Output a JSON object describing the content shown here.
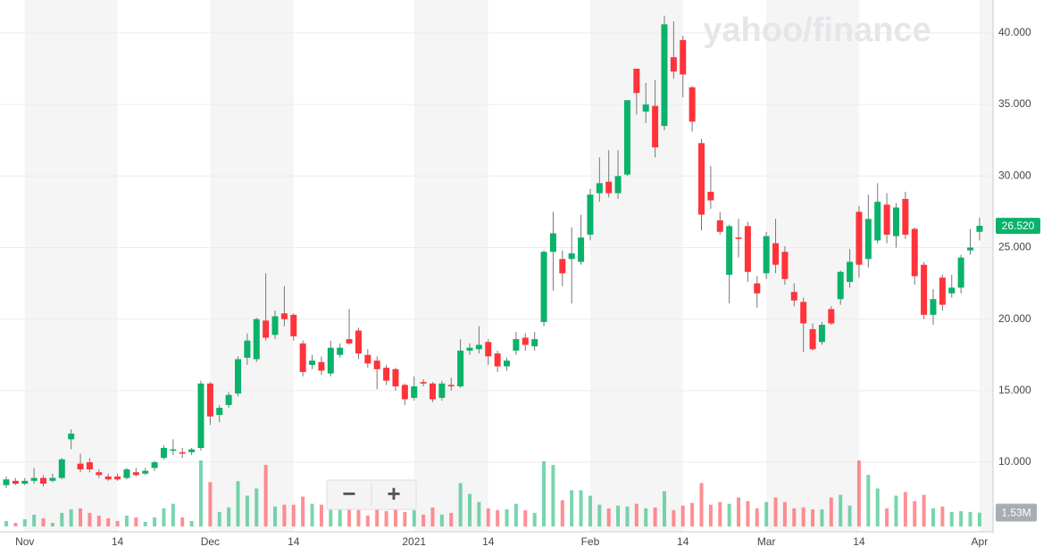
{
  "chart_data": {
    "type": "candlestick",
    "watermark": "yahoo/finance",
    "controls": [
      "−",
      "+"
    ],
    "up_color": "#0ab26a",
    "down_color": "#ff333a",
    "ylim": [
      5.2,
      42.3
    ],
    "yticks": [
      {
        "value": 10,
        "label": "10.000"
      },
      {
        "value": 15,
        "label": "15.000"
      },
      {
        "value": 20,
        "label": "20.000"
      },
      {
        "value": 25,
        "label": "25.000"
      },
      {
        "value": 30,
        "label": "30.000"
      },
      {
        "value": 35,
        "label": "35.000"
      },
      {
        "value": 40,
        "label": "40.000"
      }
    ],
    "grid": true,
    "last_price_label": "26.520",
    "last_volume_label": "1.53M",
    "volume_lim": [
      0,
      7.5
    ],
    "categories": [
      null,
      null,
      "Nov",
      null,
      null,
      null,
      null,
      null,
      null,
      null,
      null,
      null,
      "14",
      null,
      null,
      null,
      null,
      null,
      null,
      null,
      null,
      null,
      "Dec",
      null,
      null,
      null,
      null,
      null,
      null,
      null,
      null,
      "14",
      null,
      null,
      null,
      null,
      null,
      null,
      null,
      null,
      null,
      null,
      null,
      null,
      "2021",
      null,
      null,
      null,
      null,
      null,
      null,
      null,
      "14",
      null,
      null,
      null,
      null,
      null,
      null,
      null,
      null,
      null,
      null,
      "Feb",
      null,
      null,
      null,
      null,
      null,
      null,
      null,
      null,
      null,
      "14",
      null,
      null,
      null,
      null,
      null,
      null,
      null,
      null,
      "Mar",
      null,
      null,
      null,
      null,
      null,
      null,
      null,
      null,
      null,
      "14",
      null,
      null,
      null,
      null,
      null,
      null,
      null,
      null,
      null,
      null,
      null,
      null,
      "Apr"
    ],
    "candles": [
      [
        8.4,
        9.0,
        8.2,
        8.8
      ],
      [
        8.7,
        8.9,
        8.4,
        8.5
      ],
      [
        8.5,
        8.9,
        8.4,
        8.7
      ],
      [
        8.7,
        9.6,
        8.5,
        8.9
      ],
      [
        8.9,
        9.1,
        8.3,
        8.5
      ],
      [
        8.7,
        9.2,
        8.6,
        8.9
      ],
      [
        8.9,
        10.3,
        8.8,
        10.2
      ],
      [
        11.6,
        12.3,
        10.9,
        12.0
      ],
      [
        9.9,
        10.6,
        9.3,
        9.5
      ],
      [
        10.0,
        10.3,
        9.3,
        9.5
      ],
      [
        9.3,
        9.5,
        8.9,
        9.1
      ],
      [
        9.0,
        9.2,
        8.7,
        8.8
      ],
      [
        9.0,
        9.2,
        8.7,
        8.8
      ],
      [
        8.9,
        9.6,
        8.8,
        9.5
      ],
      [
        9.3,
        9.6,
        9.0,
        9.1
      ],
      [
        9.2,
        9.6,
        9.1,
        9.4
      ],
      [
        9.6,
        10.1,
        9.4,
        10.0
      ],
      [
        10.3,
        11.2,
        10.2,
        11.0
      ],
      [
        10.8,
        11.6,
        10.5,
        10.9
      ],
      [
        10.7,
        11.0,
        10.3,
        10.6
      ],
      [
        10.7,
        11.0,
        10.5,
        10.9
      ],
      [
        11.0,
        15.7,
        10.8,
        15.5
      ],
      [
        15.5,
        15.6,
        12.6,
        13.2
      ],
      [
        13.3,
        14.0,
        12.8,
        13.8
      ],
      [
        14.0,
        14.9,
        13.8,
        14.7
      ],
      [
        14.8,
        17.4,
        14.6,
        17.2
      ],
      [
        17.3,
        19.0,
        16.8,
        18.5
      ],
      [
        17.2,
        20.1,
        17.0,
        20.0
      ],
      [
        19.9,
        23.2,
        18.5,
        18.7
      ],
      [
        18.9,
        20.6,
        18.6,
        20.2
      ],
      [
        20.4,
        22.3,
        19.5,
        20.0
      ],
      [
        20.3,
        20.4,
        18.5,
        18.8
      ],
      [
        18.3,
        18.5,
        16.0,
        16.3
      ],
      [
        16.8,
        17.5,
        16.5,
        17.1
      ],
      [
        17.0,
        17.4,
        16.1,
        16.4
      ],
      [
        16.2,
        18.5,
        16.0,
        18.0
      ],
      [
        17.5,
        18.3,
        17.3,
        18.0
      ],
      [
        18.6,
        20.7,
        18.2,
        18.3
      ],
      [
        19.2,
        19.4,
        17.2,
        17.6
      ],
      [
        17.5,
        17.9,
        16.6,
        16.9
      ],
      [
        17.1,
        17.4,
        15.1,
        16.5
      ],
      [
        16.6,
        16.8,
        15.4,
        15.7
      ],
      [
        16.5,
        16.6,
        15.0,
        15.3
      ],
      [
        15.4,
        15.5,
        14.0,
        14.4
      ],
      [
        14.5,
        16.0,
        14.3,
        15.3
      ],
      [
        15.6,
        15.8,
        15.3,
        15.5
      ],
      [
        15.5,
        15.6,
        14.2,
        14.4
      ],
      [
        14.5,
        15.7,
        14.3,
        15.5
      ],
      [
        15.4,
        15.9,
        15.0,
        15.3
      ],
      [
        15.3,
        18.6,
        15.2,
        17.8
      ],
      [
        17.8,
        18.3,
        17.5,
        18.0
      ],
      [
        17.9,
        19.5,
        17.6,
        18.2
      ],
      [
        18.4,
        18.6,
        16.8,
        17.4
      ],
      [
        17.6,
        17.8,
        16.3,
        16.7
      ],
      [
        16.7,
        17.3,
        16.4,
        17.1
      ],
      [
        17.8,
        19.1,
        17.5,
        18.6
      ],
      [
        18.7,
        19.0,
        17.8,
        18.2
      ],
      [
        18.1,
        19.1,
        17.8,
        18.6
      ],
      [
        19.8,
        24.8,
        19.5,
        24.7
      ],
      [
        24.7,
        27.5,
        22.0,
        26.0
      ],
      [
        24.2,
        24.8,
        22.3,
        23.2
      ],
      [
        24.2,
        26.4,
        21.1,
        24.6
      ],
      [
        24.0,
        27.3,
        23.8,
        25.7
      ],
      [
        25.9,
        29.1,
        25.5,
        28.7
      ],
      [
        28.8,
        31.3,
        28.2,
        29.5
      ],
      [
        29.6,
        31.8,
        28.5,
        28.8
      ],
      [
        28.8,
        31.8,
        28.4,
        30.0
      ],
      [
        30.1,
        35.3,
        30.0,
        35.3
      ],
      [
        37.5,
        37.5,
        34.3,
        35.8
      ],
      [
        34.5,
        36.5,
        33.7,
        35.0
      ],
      [
        34.9,
        36.7,
        31.3,
        32.0
      ],
      [
        33.5,
        41.2,
        33.2,
        40.6
      ],
      [
        38.3,
        40.8,
        36.8,
        37.3
      ],
      [
        39.5,
        39.8,
        35.5,
        37.1
      ],
      [
        36.2,
        36.3,
        33.1,
        33.8
      ],
      [
        32.3,
        32.6,
        26.2,
        27.3
      ],
      [
        28.9,
        30.7,
        27.7,
        28.3
      ],
      [
        26.9,
        27.5,
        25.9,
        26.1
      ],
      [
        23.1,
        26.6,
        21.1,
        26.5
      ],
      [
        25.7,
        27.0,
        24.3,
        25.6
      ],
      [
        26.5,
        26.8,
        22.6,
        23.3
      ],
      [
        22.5,
        23.0,
        20.8,
        21.8
      ],
      [
        23.2,
        26.1,
        22.8,
        25.8
      ],
      [
        25.3,
        27.0,
        23.2,
        23.8
      ],
      [
        24.7,
        25.1,
        22.4,
        22.8
      ],
      [
        21.9,
        22.5,
        20.9,
        21.3
      ],
      [
        21.2,
        21.5,
        17.7,
        19.7
      ],
      [
        19.3,
        19.7,
        17.8,
        17.9
      ],
      [
        18.4,
        19.8,
        18.2,
        19.6
      ],
      [
        20.7,
        20.9,
        19.6,
        19.7
      ],
      [
        21.4,
        23.4,
        21.0,
        23.3
      ],
      [
        22.6,
        24.9,
        22.2,
        24.0
      ],
      [
        27.5,
        27.9,
        22.9,
        23.8
      ],
      [
        24.2,
        28.7,
        23.6,
        27.0
      ],
      [
        25.5,
        29.5,
        25.3,
        28.2
      ],
      [
        28.0,
        28.8,
        25.3,
        25.9
      ],
      [
        25.8,
        28.1,
        25.0,
        27.8
      ],
      [
        28.4,
        28.9,
        25.6,
        25.9
      ],
      [
        26.3,
        26.4,
        22.4,
        23.0
      ],
      [
        23.8,
        24.0,
        20.0,
        20.3
      ],
      [
        20.3,
        22.1,
        19.6,
        21.4
      ],
      [
        22.9,
        23.1,
        20.6,
        21.0
      ],
      [
        21.8,
        23.1,
        21.5,
        22.2
      ],
      [
        22.2,
        24.5,
        21.8,
        24.3
      ],
      [
        24.8,
        26.3,
        24.5,
        25.0
      ],
      [
        26.1,
        27.1,
        25.5,
        26.52
      ]
    ],
    "volume": [
      0.6,
      0.4,
      0.8,
      1.3,
      0.9,
      0.4,
      1.5,
      1.9,
      2.0,
      1.5,
      1.2,
      0.9,
      0.6,
      1.2,
      1.0,
      0.5,
      1.0,
      2.0,
      2.5,
      1.0,
      0.6,
      7.3,
      4.9,
      1.6,
      2.1,
      5.0,
      3.4,
      4.2,
      6.8,
      2.2,
      2.4,
      2.4,
      3.3,
      2.5,
      2.4,
      3.2,
      2.5,
      2.1,
      1.8,
      1.2,
      2.2,
      1.7,
      1.9,
      1.6,
      1.8,
      1.3,
      2.1,
      1.3,
      1.5,
      4.8,
      3.6,
      2.7,
      2.0,
      1.8,
      1.9,
      2.5,
      1.8,
      1.5,
      7.2,
      6.8,
      2.9,
      4.0,
      4.0,
      3.4,
      2.4,
      2.0,
      2.3,
      2.2,
      2.5,
      2.0,
      2.1,
      3.9,
      1.8,
      2.3,
      2.6,
      4.8,
      2.4,
      2.7,
      2.5,
      3.2,
      2.8,
      2.0,
      2.7,
      3.2,
      2.7,
      2.0,
      2.1,
      1.9,
      1.9,
      3.2,
      3.5,
      2.3,
      7.3,
      5.7,
      4.2,
      2.0,
      3.4,
      3.8,
      2.8,
      3.5,
      2.0,
      2.2,
      1.6,
      1.7,
      1.6,
      1.53
    ]
  }
}
